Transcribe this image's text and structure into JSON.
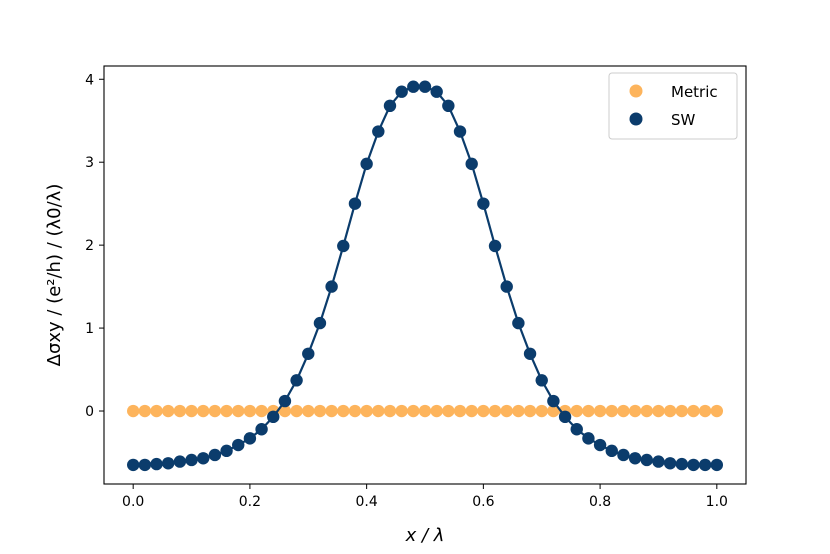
{
  "chart_data": {
    "type": "scatter",
    "xlabel": "x / λ",
    "ylabel": "Δσxy / (e²/h) / (λ0/λ)",
    "xlim": [
      -0.05,
      1.05
    ],
    "ylim": [
      -0.88,
      4.16
    ],
    "xticks": [
      0.0,
      0.2,
      0.4,
      0.6,
      0.8,
      1.0
    ],
    "xtick_labels": [
      "0.0",
      "0.2",
      "0.4",
      "0.6",
      "0.8",
      "1.0"
    ],
    "yticks": [
      0,
      1,
      2,
      3,
      4
    ],
    "ytick_labels": [
      "0",
      "1",
      "2",
      "3",
      "4"
    ],
    "legend_position": "top-right",
    "grid": false,
    "series": [
      {
        "name": "Metric",
        "color": "#fdb45c",
        "line": false,
        "x": [
          0.0,
          0.02,
          0.04,
          0.06,
          0.08,
          0.1,
          0.12,
          0.14,
          0.16,
          0.18,
          0.2,
          0.22,
          0.24,
          0.26,
          0.28,
          0.3,
          0.32,
          0.34,
          0.36,
          0.38,
          0.4,
          0.42,
          0.44,
          0.46,
          0.48,
          0.5,
          0.52,
          0.54,
          0.56,
          0.58,
          0.6,
          0.62,
          0.64,
          0.66,
          0.68,
          0.7,
          0.72,
          0.74,
          0.76,
          0.78,
          0.8,
          0.82,
          0.84,
          0.86,
          0.88,
          0.9,
          0.92,
          0.94,
          0.96,
          0.98,
          1.0
        ],
        "y": [
          0,
          0,
          0,
          0,
          0,
          0,
          0,
          0,
          0,
          0,
          0,
          0,
          0,
          0,
          0,
          0,
          0,
          0,
          0,
          0,
          0,
          0,
          0,
          0,
          0,
          0,
          0,
          0,
          0,
          0,
          0,
          0,
          0,
          0,
          0,
          0,
          0,
          0,
          0,
          0,
          0,
          0,
          0,
          0,
          0,
          0,
          0,
          0,
          0,
          0,
          0
        ]
      },
      {
        "name": "SW",
        "color": "#0b3c6c",
        "line": true,
        "x": [
          0.0,
          0.02,
          0.04,
          0.06,
          0.08,
          0.1,
          0.12,
          0.14,
          0.16,
          0.18,
          0.2,
          0.22,
          0.24,
          0.26,
          0.28,
          0.3,
          0.32,
          0.34,
          0.36,
          0.38,
          0.4,
          0.42,
          0.44,
          0.46,
          0.48,
          0.5,
          0.52,
          0.54,
          0.56,
          0.58,
          0.6,
          0.62,
          0.64,
          0.66,
          0.68,
          0.7,
          0.72,
          0.74,
          0.76,
          0.78,
          0.8,
          0.82,
          0.84,
          0.86,
          0.88,
          0.9,
          0.92,
          0.94,
          0.96,
          0.98,
          1.0
        ],
        "y": [
          -0.65,
          -0.65,
          -0.64,
          -0.63,
          -0.61,
          -0.59,
          -0.57,
          -0.53,
          -0.48,
          -0.41,
          -0.33,
          -0.22,
          -0.07,
          0.12,
          0.37,
          0.69,
          1.06,
          1.5,
          1.99,
          2.5,
          2.98,
          3.37,
          3.68,
          3.85,
          3.91,
          3.91,
          3.85,
          3.68,
          3.37,
          2.98,
          2.5,
          1.99,
          1.5,
          1.06,
          0.69,
          0.37,
          0.12,
          -0.07,
          -0.22,
          -0.33,
          -0.41,
          -0.48,
          -0.53,
          -0.57,
          -0.59,
          -0.61,
          -0.63,
          -0.64,
          -0.65,
          -0.65,
          -0.65
        ]
      }
    ]
  }
}
